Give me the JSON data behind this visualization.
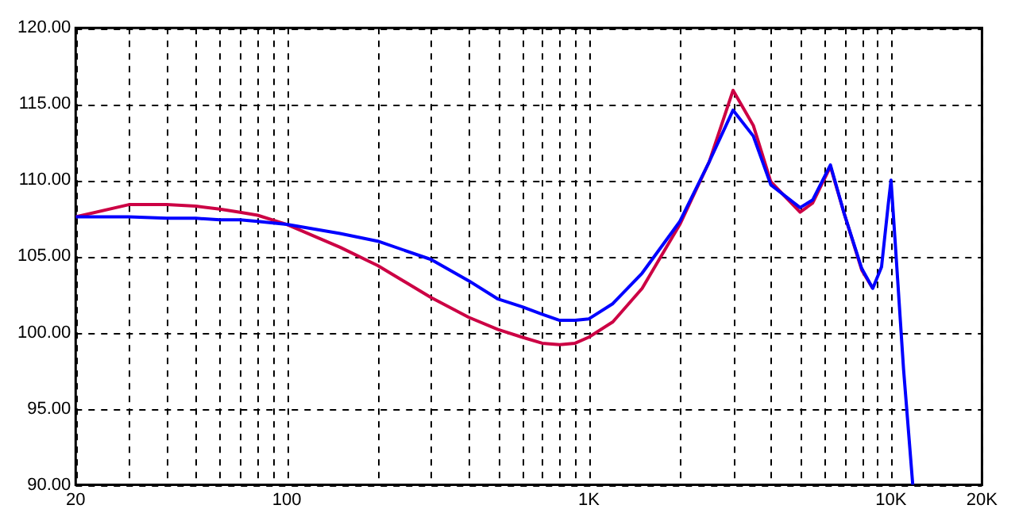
{
  "chart_data": {
    "type": "line",
    "log": "x",
    "grid": true,
    "legend": false,
    "marker": "none",
    "xlim": [
      20,
      20000
    ],
    "ylim": [
      90,
      120
    ],
    "xticks": [
      20,
      {
        "value": 30,
        "label": null
      },
      {
        "value": 40,
        "label": null
      },
      {
        "value": 50,
        "label": null
      },
      {
        "value": 60,
        "label": null
      },
      {
        "value": 70,
        "label": null
      },
      {
        "value": 80,
        "label": null
      },
      {
        "value": 90,
        "label": null
      },
      {
        "value": 100,
        "label": "100"
      },
      {
        "value": 200,
        "label": null
      },
      {
        "value": 300,
        "label": null
      },
      {
        "value": 400,
        "label": null
      },
      {
        "value": 500,
        "label": null
      },
      {
        "value": 600,
        "label": null
      },
      {
        "value": 700,
        "label": null
      },
      {
        "value": 800,
        "label": null
      },
      {
        "value": 900,
        "label": null
      },
      {
        "value": 1000,
        "label": "1K"
      },
      {
        "value": 2000,
        "label": null
      },
      {
        "value": 3000,
        "label": null
      },
      {
        "value": 4000,
        "label": null
      },
      {
        "value": 5000,
        "label": null
      },
      {
        "value": 6000,
        "label": null
      },
      {
        "value": 7000,
        "label": null
      },
      {
        "value": 8000,
        "label": null
      },
      {
        "value": 9000,
        "label": null
      },
      {
        "value": 10000,
        "label": "10K"
      },
      {
        "value": 20000,
        "label": "20K"
      }
    ],
    "yticks": [
      {
        "value": 90,
        "label": "90.00"
      },
      {
        "value": 95,
        "label": "95.00"
      },
      {
        "value": 100,
        "label": "100.00"
      },
      {
        "value": 105,
        "label": "105.00"
      },
      {
        "value": 110,
        "label": "110.00"
      },
      {
        "value": 115,
        "label": "115.00"
      },
      {
        "value": 120,
        "label": "120.00"
      }
    ],
    "x": [
      20,
      30,
      40,
      50,
      60,
      70,
      80,
      100,
      150,
      200,
      300,
      400,
      500,
      600,
      700,
      800,
      900,
      1000,
      1200,
      1500,
      2000,
      2500,
      3000,
      3500,
      4000,
      5000,
      5500,
      6300,
      7000,
      8000,
      8700,
      9300,
      9800,
      10000,
      10300,
      11000,
      11800
    ],
    "series": [
      {
        "color": "#cc0044",
        "values": [
          107.6,
          108.4,
          108.4,
          108.3,
          108.1,
          107.9,
          107.7,
          107.1,
          105.6,
          104.4,
          102.3,
          101.0,
          100.2,
          99.7,
          99.3,
          99.2,
          99.3,
          99.7,
          100.7,
          102.9,
          107.1,
          111.2,
          115.9,
          113.6,
          109.9,
          107.9,
          108.5,
          110.9,
          107.8,
          104.1,
          102.9,
          null,
          null,
          null,
          null,
          null,
          null
        ]
      },
      {
        "color": "#0000ff",
        "values": [
          107.6,
          107.6,
          107.5,
          107.5,
          107.4,
          107.4,
          107.3,
          107.1,
          106.5,
          106.0,
          104.8,
          103.4,
          102.2,
          101.7,
          101.2,
          100.8,
          100.8,
          100.9,
          101.9,
          103.9,
          107.3,
          111.2,
          114.6,
          112.9,
          109.7,
          108.2,
          108.7,
          111.0,
          107.8,
          104.2,
          102.9,
          104.3,
          108.5,
          110.0,
          106.2,
          97.6,
          90
        ]
      }
    ]
  }
}
